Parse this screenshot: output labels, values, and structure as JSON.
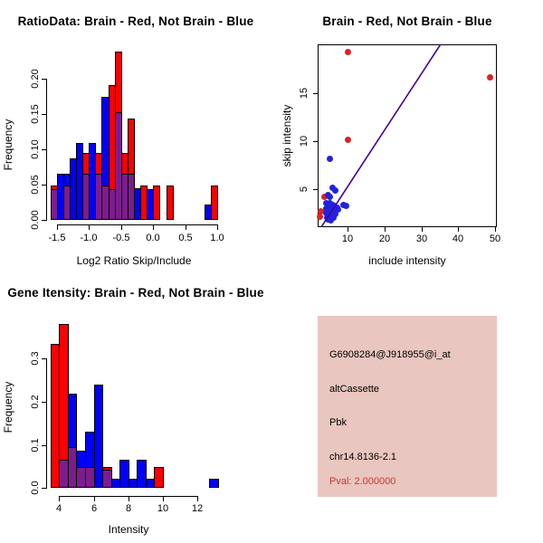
{
  "page": {
    "background": "#ffffff"
  },
  "chart_data": [
    {
      "id": "ratio_histogram",
      "type": "bar",
      "subtype": "overlaid_histogram",
      "title": "RatioData: Brain - Red, Not Brain - Blue",
      "xlabel": "Log2 Ratio Skip/Include",
      "ylabel": "Frequency",
      "bin_width": 0.1,
      "xlim": [
        -1.65,
        1.05
      ],
      "ylim": [
        0,
        0.245
      ],
      "x_ticks": [
        -1.5,
        -1.0,
        -0.5,
        0.0,
        0.5,
        1.0
      ],
      "x_tick_labels": [
        "-1.5",
        "-1.0",
        "-0.5",
        "0.0",
        "0.5",
        "1.0"
      ],
      "y_ticks": [
        0.0,
        0.05,
        0.1,
        0.15,
        0.2
      ],
      "y_tick_labels": [
        "0.00",
        "0.05",
        "0.10",
        "0.15",
        "0.20"
      ],
      "grid": false,
      "overlap_color": "#7d1c8c",
      "series": [
        {
          "name": "Brain",
          "color": "#ff0000",
          "bins": [
            [
              -1.6,
              0.048
            ],
            [
              -1.4,
              0.048
            ],
            [
              -1.1,
              0.095
            ],
            [
              -0.9,
              0.095
            ],
            [
              -0.8,
              0.048
            ],
            [
              -0.7,
              0.19
            ],
            [
              -0.6,
              0.238
            ],
            [
              -0.5,
              0.095
            ],
            [
              -0.4,
              0.143
            ],
            [
              -0.2,
              0.048
            ],
            [
              0.0,
              0.048
            ],
            [
              0.2,
              0.048
            ],
            [
              0.9,
              0.048
            ]
          ]
        },
        {
          "name": "Not Brain",
          "color": "#0000ff",
          "bins": [
            [
              -1.6,
              0.043
            ],
            [
              -1.5,
              0.065
            ],
            [
              -1.4,
              0.065
            ],
            [
              -1.3,
              0.087
            ],
            [
              -1.2,
              0.108
            ],
            [
              -1.1,
              0.065
            ],
            [
              -1.0,
              0.108
            ],
            [
              -0.9,
              0.065
            ],
            [
              -0.8,
              0.174
            ],
            [
              -0.7,
              0.043
            ],
            [
              -0.6,
              0.152
            ],
            [
              -0.5,
              0.065
            ],
            [
              -0.4,
              0.065
            ],
            [
              -0.3,
              0.045
            ],
            [
              -0.1,
              0.043
            ],
            [
              0.8,
              0.022
            ]
          ]
        }
      ]
    },
    {
      "id": "intensity_scatter",
      "type": "scatter",
      "title": "Brain - Red, Not Brain - Blue",
      "xlabel": "include intensity",
      "ylabel": "skip intensity",
      "xlim": [
        1.8,
        50.5
      ],
      "ylim": [
        1.0,
        20.3
      ],
      "x_ticks": [
        10,
        20,
        30,
        40,
        50
      ],
      "x_tick_labels": [
        "10",
        "20",
        "30",
        "40",
        "50"
      ],
      "y_ticks": [
        5,
        10,
        15
      ],
      "y_tick_labels": [
        "5",
        "10",
        "15"
      ],
      "grid": false,
      "fit_line": {
        "x1": 2.8,
        "y1": 1.07,
        "x2": 35.2,
        "y2": 20.15,
        "color": "#440099"
      },
      "series": [
        {
          "name": "Brain",
          "color": "#dd2222",
          "points": [
            [
              9.8,
              19.4
            ],
            [
              48.5,
              16.7
            ],
            [
              9.8,
              10.2
            ],
            [
              3.4,
              4.3
            ],
            [
              2.6,
              2.7
            ],
            [
              2.4,
              2.2
            ]
          ]
        },
        {
          "name": "Not Brain",
          "color": "#2222dd",
          "points": [
            [
              4.9,
              8.2
            ],
            [
              5.7,
              5.2
            ],
            [
              6.5,
              4.9
            ],
            [
              4.6,
              4.4
            ],
            [
              5.0,
              4.3
            ],
            [
              4.0,
              3.6
            ],
            [
              4.5,
              3.5
            ],
            [
              5.1,
              3.6
            ],
            [
              5.7,
              3.4
            ],
            [
              6.3,
              3.3
            ],
            [
              6.9,
              3.1
            ],
            [
              7.3,
              2.9
            ],
            [
              8.6,
              3.4
            ],
            [
              9.4,
              3.3
            ],
            [
              3.9,
              3.0
            ],
            [
              4.3,
              3.1
            ],
            [
              4.7,
              3.0
            ],
            [
              5.2,
              3.0
            ],
            [
              5.6,
              2.9
            ],
            [
              6.1,
              2.8
            ],
            [
              4.1,
              2.6
            ],
            [
              4.5,
              2.5
            ],
            [
              5.0,
              2.5
            ],
            [
              5.5,
              2.4
            ],
            [
              6.0,
              2.3
            ],
            [
              6.5,
              2.5
            ],
            [
              4.3,
              2.1
            ],
            [
              4.8,
              2.0
            ],
            [
              5.3,
              2.0
            ],
            [
              5.9,
              2.1
            ],
            [
              4.6,
              1.9
            ],
            [
              5.2,
              1.8
            ]
          ]
        }
      ]
    },
    {
      "id": "gene_intensity_histogram",
      "type": "bar",
      "subtype": "overlaid_histogram",
      "title": "Gene Itensity: Brain - Red, Not Brain - Blue",
      "xlabel": "Intensity",
      "ylabel": "Frequency",
      "bin_width": 0.5,
      "xlim": [
        3.4,
        13.4
      ],
      "ylim": [
        0,
        0.39
      ],
      "x_ticks": [
        4,
        6,
        8,
        10,
        12
      ],
      "x_tick_labels": [
        "4",
        "6",
        "8",
        "10",
        "12"
      ],
      "y_ticks": [
        0.0,
        0.1,
        0.2,
        0.3
      ],
      "y_tick_labels": [
        "0.0",
        "0.1",
        "0.2",
        "0.3"
      ],
      "grid": false,
      "overlap_color": "#7d1c8c",
      "series": [
        {
          "name": "Brain",
          "color": "#ff0000",
          "bins": [
            [
              3.5,
              0.333
            ],
            [
              4.0,
              0.381
            ],
            [
              4.5,
              0.095
            ],
            [
              5.0,
              0.048
            ],
            [
              5.5,
              0.048
            ],
            [
              6.5,
              0.048
            ],
            [
              9.5,
              0.048
            ]
          ]
        },
        {
          "name": "Not Brain",
          "color": "#0000ff",
          "bins": [
            [
              4.0,
              0.065
            ],
            [
              4.5,
              0.218
            ],
            [
              5.0,
              0.087
            ],
            [
              5.5,
              0.13
            ],
            [
              6.0,
              0.239
            ],
            [
              6.5,
              0.043
            ],
            [
              7.0,
              0.022
            ],
            [
              7.5,
              0.065
            ],
            [
              8.0,
              0.022
            ],
            [
              8.5,
              0.065
            ],
            [
              9.0,
              0.022
            ],
            [
              12.7,
              0.022
            ]
          ]
        }
      ]
    },
    {
      "id": "info_panel",
      "type": "table",
      "background": "#e9c6bf",
      "rows": [
        {
          "text": "G6908284@J918955@i_at",
          "color": "#000000"
        },
        {
          "text": "altCassette",
          "color": "#000000"
        },
        {
          "text": "Pbk",
          "color": "#000000"
        },
        {
          "text": "chr14.8136-2.1",
          "color": "#000000"
        },
        {
          "text": "Pval: 2.000000",
          "color": "#cc3333"
        }
      ]
    }
  ]
}
